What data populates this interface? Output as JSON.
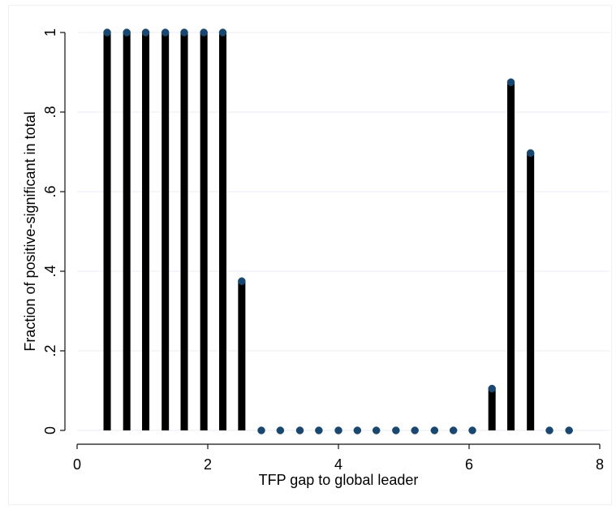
{
  "chart_data": {
    "type": "bar",
    "subtype": "stem",
    "title": "",
    "xlabel": "TFP gap to global leader",
    "ylabel": "Fraction of positive-significant in total",
    "xlim": [
      0,
      8
    ],
    "ylim": [
      0,
      1
    ],
    "x_ticks": [
      0,
      2,
      4,
      6,
      8
    ],
    "x_tick_labels": [
      "0",
      "2",
      "4",
      "6",
      "8"
    ],
    "y_ticks": [
      0,
      0.2,
      0.4,
      0.6,
      0.8,
      1
    ],
    "y_tick_labels": [
      "0",
      ".2",
      ".4",
      ".6",
      ".8",
      "1"
    ],
    "grid": true,
    "legend": "none",
    "colors": {
      "stem": "#000000",
      "marker": "#1a476f",
      "grid": "#e8eef3"
    },
    "series": [
      {
        "points": [
          {
            "x": 0.46,
            "y": 1.0
          },
          {
            "x": 0.76,
            "y": 1.0
          },
          {
            "x": 1.05,
            "y": 1.0
          },
          {
            "x": 1.35,
            "y": 1.0
          },
          {
            "x": 1.64,
            "y": 1.0
          },
          {
            "x": 1.94,
            "y": 1.0
          },
          {
            "x": 2.23,
            "y": 1.0
          },
          {
            "x": 2.52,
            "y": 0.375
          },
          {
            "x": 2.82,
            "y": 0.0
          },
          {
            "x": 3.11,
            "y": 0.0
          },
          {
            "x": 3.41,
            "y": 0.0
          },
          {
            "x": 3.7,
            "y": 0.0
          },
          {
            "x": 4.0,
            "y": 0.0
          },
          {
            "x": 4.29,
            "y": 0.0
          },
          {
            "x": 4.58,
            "y": 0.0
          },
          {
            "x": 4.88,
            "y": 0.0
          },
          {
            "x": 5.17,
            "y": 0.0
          },
          {
            "x": 5.47,
            "y": 0.0
          },
          {
            "x": 5.76,
            "y": 0.0
          },
          {
            "x": 6.05,
            "y": 0.0
          },
          {
            "x": 6.35,
            "y": 0.105
          },
          {
            "x": 6.64,
            "y": 0.875
          },
          {
            "x": 6.94,
            "y": 0.697
          },
          {
            "x": 7.23,
            "y": 0.0
          },
          {
            "x": 7.53,
            "y": 0.0
          }
        ]
      }
    ]
  }
}
